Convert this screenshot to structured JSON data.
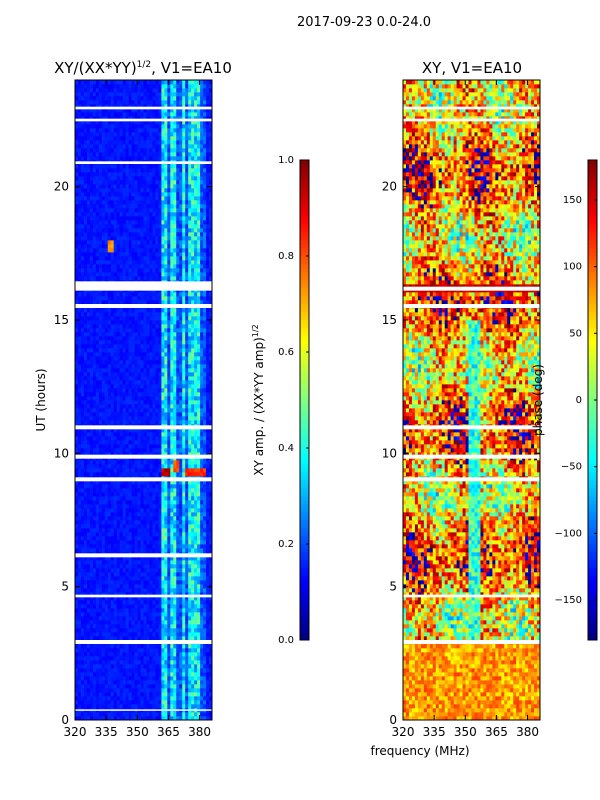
{
  "figure": {
    "suptitle": "2017-09-23 0.0-24.0",
    "xlabel": "frequency (MHz)"
  },
  "chart_data": [
    {
      "type": "heatmap",
      "title_main": "XY/(XX*YY)",
      "title_exp": "1/2",
      "title_tail": ", V1=EA10",
      "xlabel": "",
      "ylabel": "UT (hours)",
      "xlim": [
        320,
        386
      ],
      "ylim": [
        0,
        24
      ],
      "xticks": [
        320,
        335,
        350,
        365,
        380
      ],
      "yticks": [
        0,
        5,
        10,
        15,
        20
      ],
      "colorbar": {
        "label_main": "XY amp. / (XX*YY amp)",
        "label_exp": "1/2",
        "range": [
          0.0,
          1.0
        ],
        "ticks": [
          "0.0",
          "0.2",
          "0.4",
          "0.6",
          "0.8",
          "1.0"
        ],
        "tick_values": [
          0.0,
          0.2,
          0.4,
          0.6,
          0.8,
          1.0
        ]
      },
      "colormap": "jet",
      "background_value": 0.12,
      "bright_bands_mhz": [
        [
          362,
          365
        ],
        [
          366,
          369
        ],
        [
          371,
          373
        ],
        [
          375,
          380
        ]
      ],
      "gaps_ut": [
        [
          0.35,
          0.4
        ],
        [
          2.85,
          3.0
        ],
        [
          4.6,
          4.7
        ],
        [
          6.1,
          6.25
        ],
        [
          8.95,
          9.1
        ],
        [
          9.8,
          9.95
        ],
        [
          10.9,
          11.05
        ],
        [
          15.45,
          15.6
        ],
        [
          16.1,
          16.45
        ],
        [
          20.85,
          20.95
        ],
        [
          22.45,
          22.55
        ],
        [
          22.9,
          23.0
        ]
      ],
      "hotspots": [
        {
          "ut": 9.3,
          "mhz_from": 361,
          "mhz_to": 366,
          "value": 0.9
        },
        {
          "ut": 9.3,
          "mhz_from": 373,
          "mhz_to": 383,
          "value": 0.8
        },
        {
          "ut": 9.5,
          "mhz_from": 367,
          "mhz_to": 370,
          "value": 0.75
        },
        {
          "ut": 17.8,
          "mhz_from": 336,
          "mhz_to": 339,
          "value": 0.7
        }
      ]
    },
    {
      "type": "heatmap",
      "title_main": "XY, V1=EA10",
      "xlabel": "",
      "ylabel": "",
      "xlim": [
        320,
        386
      ],
      "ylim": [
        0,
        24
      ],
      "xticks": [
        320,
        335,
        350,
        365,
        380
      ],
      "yticks": [
        0,
        5,
        10,
        15,
        20
      ],
      "colorbar": {
        "label_main": "phase (deg)",
        "range": [
          -180,
          180
        ],
        "ticks": [
          "−150",
          "−100",
          "−50",
          "0",
          "50",
          "100",
          "150"
        ],
        "tick_values": [
          -150,
          -100,
          -50,
          0,
          50,
          100,
          150
        ]
      },
      "colormap": "jet",
      "gaps_ut": [
        [
          2.85,
          3.0
        ],
        [
          4.6,
          4.7
        ],
        [
          8.95,
          9.1
        ],
        [
          9.8,
          9.95
        ],
        [
          10.9,
          11.05
        ],
        [
          15.45,
          15.6
        ],
        [
          16.1,
          16.25
        ],
        [
          22.45,
          22.55
        ],
        [
          22.9,
          23.0
        ]
      ]
    }
  ]
}
